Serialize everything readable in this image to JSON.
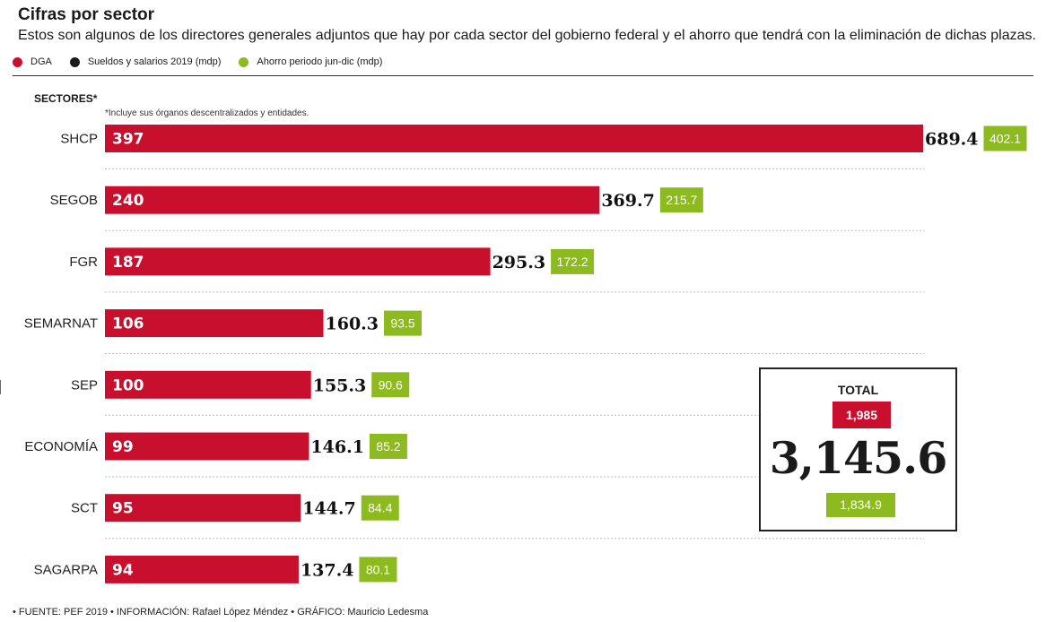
{
  "header": {
    "title": "Cifras por sector",
    "subtitle": "Estos son algunos de los directores generales adjuntos que hay por cada sector del gobierno federal y el ahorro que tendrá con la eliminación de dichas plazas."
  },
  "legend": [
    {
      "label": "DGA",
      "color": "#c8102e"
    },
    {
      "label": "Sueldos y salarios 2019 (mdp)",
      "color": "#1a1a1a"
    },
    {
      "label": "Ahorro periodo jun-dic (mdp)",
      "color": "#8dba1e"
    }
  ],
  "axis_title": "SECTORES*",
  "footnote": "*Incluye sus órganos descentralizados y entidades.",
  "total": {
    "title": "TOTAL",
    "dga": "1,985",
    "sueldos": "3,145.6",
    "ahorro": "1,834.9"
  },
  "source": "• FUENTE: PEF 2019 • INFORMACIÓN: Rafael López Méndez • GRÁFICO: Mauricio Ledesma",
  "chart_data": {
    "type": "bar",
    "orientation": "horizontal",
    "title": "Cifras por sector",
    "categories": [
      "SHCP",
      "SEGOB",
      "FGR",
      "SEMARNAT",
      "SEP",
      "ECONOMÍA",
      "SCT",
      "SAGARPA"
    ],
    "series": [
      {
        "name": "DGA",
        "values": [
          397,
          240,
          187,
          106,
          100,
          99,
          95,
          94
        ],
        "color": "#c8102e"
      },
      {
        "name": "Sueldos y salarios 2019 (mdp)",
        "values": [
          "689.4",
          "369.7",
          "295.3",
          "160.3",
          "155.3",
          "146.1",
          "144.7",
          "137.4"
        ]
      },
      {
        "name": "Ahorro periodo jun-dic (mdp)",
        "values": [
          "402.1",
          "215.7",
          "172.2",
          "93.5",
          "90.6",
          "85.2",
          "84.4",
          "80.1"
        ],
        "color": "#8dba1e"
      }
    ],
    "grid": false,
    "legend_position": "top-left"
  }
}
